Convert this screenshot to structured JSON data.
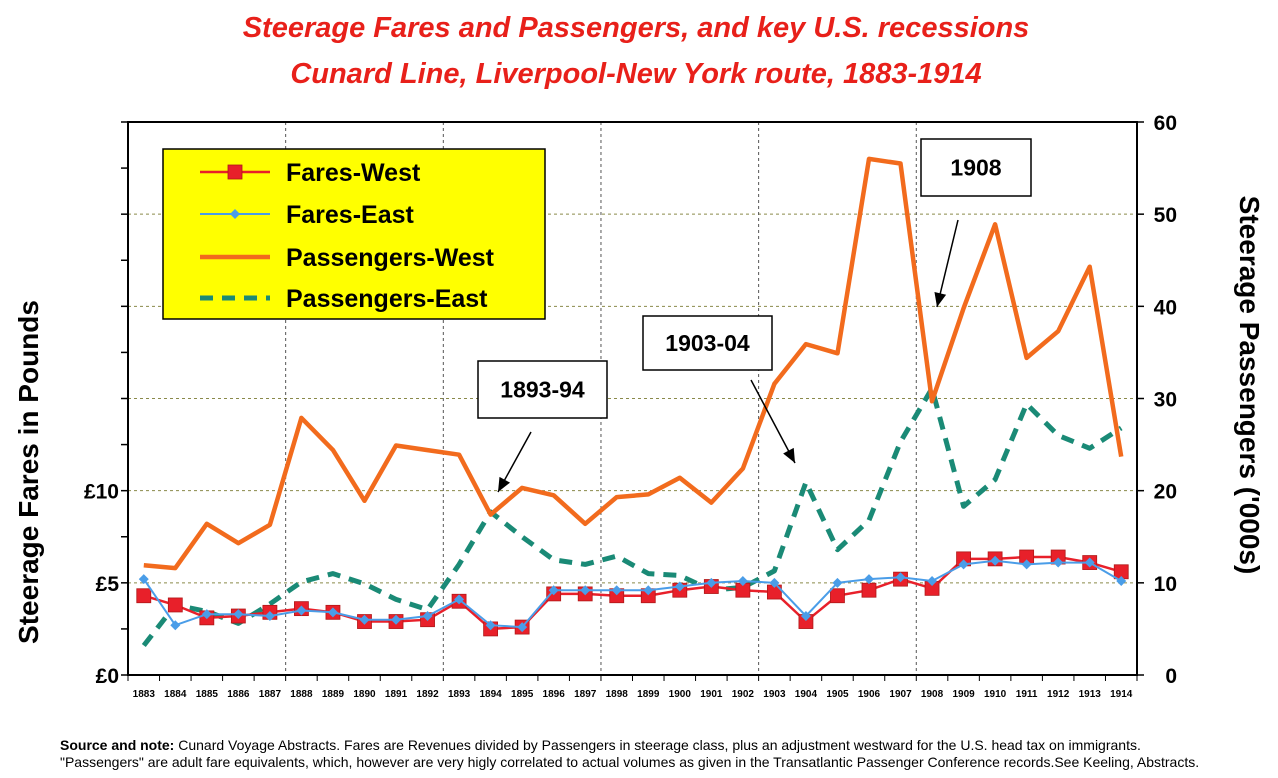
{
  "chart_data": {
    "type": "line",
    "title_line1": "Steerage Fares and Passengers, and key U.S. recessions",
    "title_line2": "Cunard Line, Liverpool-New York route, 1883-1914",
    "ylabel_left": "Steerage Fares in Pounds",
    "ylabel_right": "Steerage Passengers ('000s)",
    "categories": [
      "1883",
      "1884",
      "1885",
      "1886",
      "1887",
      "1888",
      "1889",
      "1890",
      "1891",
      "1892",
      "1893",
      "1894",
      "1895",
      "1896",
      "1897",
      "1898",
      "1899",
      "1900",
      "1901",
      "1902",
      "1903",
      "1904",
      "1905",
      "1906",
      "1907",
      "1908",
      "1909",
      "1910",
      "1911",
      "1912",
      "1913",
      "1914"
    ],
    "left_axis": {
      "ticks": [
        {
          "value": 0,
          "label": "£0"
        },
        {
          "value": 5,
          "label": "£5"
        },
        {
          "value": 10,
          "label": "£10"
        }
      ],
      "ylim": [
        0,
        30
      ]
    },
    "right_axis": {
      "ticks": [
        0,
        10,
        20,
        30,
        40,
        50,
        60
      ],
      "ylim": [
        0,
        60
      ]
    },
    "series": [
      {
        "name": "Fares-West",
        "axis": "left",
        "color": "#e8202a",
        "style": "square-markers",
        "values": [
          4.3,
          3.8,
          3.1,
          3.2,
          3.4,
          3.6,
          3.4,
          2.9,
          2.9,
          3.0,
          4.0,
          2.5,
          2.6,
          4.4,
          4.4,
          4.3,
          4.3,
          4.6,
          4.8,
          4.6,
          4.5,
          2.9,
          4.3,
          4.6,
          5.2,
          4.7,
          6.3,
          6.3,
          6.4,
          6.4,
          6.1,
          5.6
        ]
      },
      {
        "name": "Fares-East",
        "axis": "left",
        "color": "#4a9de8",
        "style": "diamond-markers",
        "values": [
          5.2,
          2.7,
          3.3,
          3.3,
          3.2,
          3.5,
          3.4,
          3.0,
          3.0,
          3.2,
          4.1,
          2.7,
          2.6,
          4.6,
          4.6,
          4.6,
          4.6,
          4.8,
          5.0,
          5.1,
          5.0,
          3.2,
          5.0,
          5.2,
          5.3,
          5.1,
          6.0,
          6.2,
          6.0,
          6.1,
          6.1,
          5.1
        ]
      },
      {
        "name": "Passengers-West",
        "axis": "right",
        "color": "#f26b1d",
        "style": "solid",
        "values": [
          11.9,
          11.6,
          16.4,
          14.3,
          16.3,
          27.9,
          24.4,
          18.9,
          24.9,
          24.4,
          23.9,
          17.4,
          20.3,
          19.5,
          16.4,
          19.3,
          19.6,
          21.4,
          18.7,
          22.4,
          31.6,
          35.9,
          34.9,
          56.0,
          55.5,
          29.7,
          39.8,
          48.9,
          34.4,
          37.3,
          44.3,
          23.7
        ]
      },
      {
        "name": "Passengers-East",
        "axis": "right",
        "color": "#1a8a76",
        "style": "dashed",
        "values": [
          3.2,
          7.6,
          6.9,
          5.6,
          7.7,
          10.1,
          11.0,
          9.9,
          8.2,
          7.1,
          12.0,
          17.7,
          15.0,
          12.5,
          12.0,
          12.9,
          11.0,
          10.8,
          9.2,
          9.5,
          11.3,
          20.9,
          13.6,
          16.8,
          25.3,
          31.1,
          18.3,
          21.2,
          29.4,
          26.0,
          24.6,
          26.8
        ]
      }
    ],
    "legend": {
      "placement": "top-left",
      "labels": [
        "Fares-West",
        "Fares-East",
        "Passengers-West",
        "Passengers-East"
      ],
      "background": "#ffff00"
    },
    "annotations": [
      {
        "label": "1893-94",
        "points_to": "1894"
      },
      {
        "label": "1903-04",
        "points_to": "1904"
      },
      {
        "label": "1908",
        "points_to": "1908"
      }
    ]
  },
  "source_note": {
    "bold_lead": "Source and note:",
    "line1": " Cunard Voyage Abstracts. Fares are Revenues divided by Passengers in steerage class, plus an adjustment westward for the U.S. head tax on immigrants.",
    "line2": "\"Passengers\" are adult fare equivalents, which, however are very higly correlated to actual volumes as given in the Transatlantic Passenger Conference records.See Keeling, Abstracts."
  }
}
